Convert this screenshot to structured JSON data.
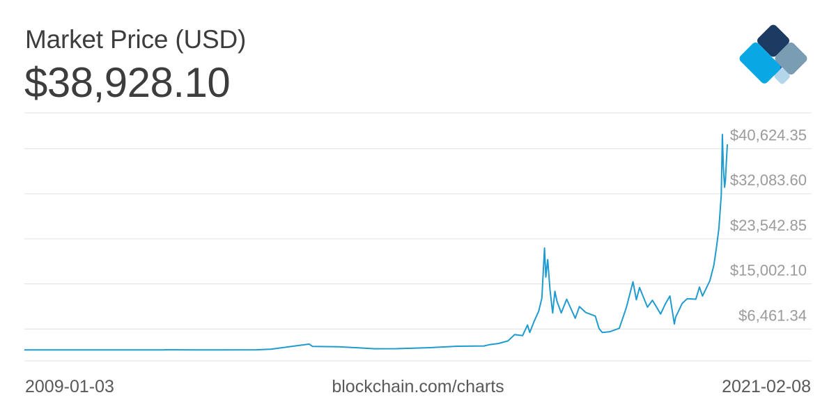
{
  "header": {
    "title": "Market Price (USD)",
    "current_value": "$38,928.10"
  },
  "footer": {
    "start_date": "2009-01-03",
    "source": "blockchain.com/charts",
    "end_date": "2021-02-08"
  },
  "colors": {
    "line": "#1f9bcf",
    "grid": "#e0e0e0",
    "logo_dark_navy": "#1c3a62",
    "logo_slate": "#7a9db3",
    "logo_blue": "#2a5fc5",
    "logo_cyan": "#0aa7e5",
    "logo_light": "#b3d6ea"
  },
  "logo": {
    "icon": "blockchain-logo-icon"
  },
  "chart_data": {
    "type": "line",
    "title": "Market Price (USD)",
    "xlabel": "",
    "ylabel": "",
    "x_range": [
      "2009-01-03",
      "2021-02-08"
    ],
    "ylim": [
      -2080,
      44895
    ],
    "y_ticks": [
      6461.34,
      15002.1,
      23542.85,
      32083.6,
      40624.35
    ],
    "y_tick_labels": [
      "$6,461.34",
      "$15,002.10",
      "$23,542.85",
      "$32,083.60",
      "$40,624.35"
    ],
    "grid": true,
    "series": [
      {
        "values_note": "",
        "x": [
          "2009-01-03",
          "2010-07-01",
          "2011-01-01",
          "2011-06-01",
          "2011-06-10",
          "2011-06-20",
          "2011-08-01",
          "2011-12-01",
          "2012-06-01",
          "2013-01-01",
          "2013-04-01",
          "2013-11-29",
          "2013-12-20",
          "2014-06-01",
          "2015-01-15",
          "2015-06-01",
          "2016-01-01",
          "2016-06-15",
          "2016-12-01",
          "2017-01-05",
          "2017-03-01",
          "2017-05-01",
          "2017-06-12",
          "2017-08-01",
          "2017-09-01",
          "2017-09-15",
          "2017-10-15",
          "2017-11-10",
          "2017-11-30",
          "2017-12-17",
          "2017-12-25",
          "2018-01-06",
          "2018-01-20",
          "2018-02-06",
          "2018-02-20",
          "2018-03-05",
          "2018-04-01",
          "2018-05-05",
          "2018-06-28",
          "2018-07-24",
          "2018-09-01",
          "2018-11-01",
          "2018-11-25",
          "2018-12-15",
          "2019-02-01",
          "2019-04-01",
          "2019-05-15",
          "2019-06-26",
          "2019-07-17",
          "2019-08-06",
          "2019-09-25",
          "2019-10-26",
          "2019-12-17",
          "2020-01-15",
          "2020-02-13",
          "2020-03-12",
          "2020-03-20",
          "2020-04-30",
          "2020-06-01",
          "2020-07-25",
          "2020-08-17",
          "2020-09-05",
          "2020-10-21",
          "2020-11-15",
          "2020-12-01",
          "2020-12-17",
          "2021-01-01",
          "2021-01-08",
          "2021-01-14",
          "2021-01-22",
          "2021-01-27",
          "2021-02-02",
          "2021-02-08"
        ],
        "values": [
          0,
          0.06,
          0.3,
          10,
          29.6,
          15,
          12,
          3,
          6,
          13.5,
          140,
          1100,
          650,
          600,
          220,
          230,
          430,
          690,
          740,
          1000,
          1200,
          1700,
          2900,
          2700,
          4700,
          3300,
          5600,
          7300,
          9800,
          19300,
          13800,
          17100,
          11500,
          7000,
          11100,
          9200,
          7000,
          9600,
          6000,
          8200,
          7100,
          6400,
          4000,
          3300,
          3450,
          4100,
          8000,
          12900,
          9500,
          11800,
          8100,
          9400,
          6800,
          8700,
          10200,
          4900,
          6200,
          8800,
          9700,
          9600,
          11900,
          10200,
          13100,
          16000,
          19200,
          23000,
          29300,
          40800,
          34700,
          30800,
          32100,
          35500,
          38928
        ]
      }
    ]
  }
}
